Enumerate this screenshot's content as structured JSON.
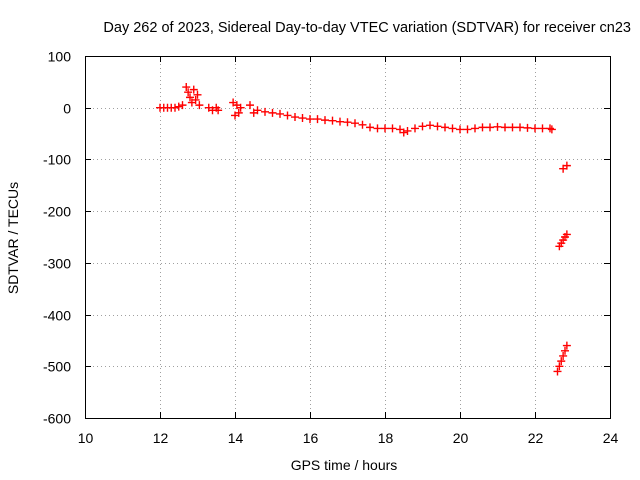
{
  "chart_data": {
    "type": "scatter",
    "title": "Day 262 of 2023, Sidereal Day-to-day VTEC variation (SDTVAR) for receiver cn23",
    "xlabel": "GPS time / hours",
    "ylabel": "SDTVAR / TECUs",
    "xlim": [
      10,
      24
    ],
    "ylim": [
      -600,
      100
    ],
    "xticks": [
      "10",
      "12",
      "14",
      "16",
      "18",
      "20",
      "22",
      "24"
    ],
    "yticks": [
      "100",
      "0",
      "-100",
      "-200",
      "-300",
      "-400",
      "-500",
      "-600"
    ],
    "grid": true,
    "marker": "plus",
    "color": "#ff0000",
    "series": [
      {
        "name": "SDTVAR",
        "points": [
          [
            12.0,
            0
          ],
          [
            12.1,
            0
          ],
          [
            12.2,
            0
          ],
          [
            12.3,
            0
          ],
          [
            12.4,
            0
          ],
          [
            12.5,
            2
          ],
          [
            12.6,
            5
          ],
          [
            12.7,
            40
          ],
          [
            12.75,
            30
          ],
          [
            12.8,
            20
          ],
          [
            12.85,
            10
          ],
          [
            12.9,
            35
          ],
          [
            12.95,
            15
          ],
          [
            13.0,
            25
          ],
          [
            13.05,
            5
          ],
          [
            13.3,
            0
          ],
          [
            13.4,
            -5
          ],
          [
            13.5,
            0
          ],
          [
            13.55,
            -5
          ],
          [
            13.95,
            10
          ],
          [
            14.0,
            -15
          ],
          [
            14.05,
            5
          ],
          [
            14.1,
            -10
          ],
          [
            14.15,
            0
          ],
          [
            14.4,
            5
          ],
          [
            14.5,
            -10
          ],
          [
            14.6,
            -5
          ],
          [
            14.8,
            -8
          ],
          [
            15.0,
            -10
          ],
          [
            15.2,
            -12
          ],
          [
            15.4,
            -15
          ],
          [
            15.6,
            -18
          ],
          [
            15.8,
            -20
          ],
          [
            16.0,
            -22
          ],
          [
            16.2,
            -22
          ],
          [
            16.4,
            -24
          ],
          [
            16.6,
            -25
          ],
          [
            16.8,
            -27
          ],
          [
            17.0,
            -28
          ],
          [
            17.2,
            -30
          ],
          [
            17.4,
            -33
          ],
          [
            17.6,
            -38
          ],
          [
            17.8,
            -40
          ],
          [
            18.0,
            -40
          ],
          [
            18.2,
            -40
          ],
          [
            18.4,
            -42
          ],
          [
            18.5,
            -48
          ],
          [
            18.6,
            -45
          ],
          [
            18.8,
            -40
          ],
          [
            19.0,
            -36
          ],
          [
            19.2,
            -34
          ],
          [
            19.4,
            -36
          ],
          [
            19.6,
            -38
          ],
          [
            19.8,
            -40
          ],
          [
            20.0,
            -42
          ],
          [
            20.2,
            -42
          ],
          [
            20.4,
            -40
          ],
          [
            20.6,
            -38
          ],
          [
            20.8,
            -38
          ],
          [
            21.0,
            -37
          ],
          [
            21.2,
            -38
          ],
          [
            21.4,
            -38
          ],
          [
            21.6,
            -38
          ],
          [
            21.8,
            -39
          ],
          [
            22.0,
            -40
          ],
          [
            22.2,
            -40
          ],
          [
            22.4,
            -40
          ],
          [
            22.45,
            -42
          ],
          [
            22.75,
            -118
          ],
          [
            22.85,
            -112
          ],
          [
            22.65,
            -268
          ],
          [
            22.7,
            -262
          ],
          [
            22.75,
            -256
          ],
          [
            22.8,
            -250
          ],
          [
            22.85,
            -245
          ],
          [
            22.6,
            -510
          ],
          [
            22.65,
            -500
          ],
          [
            22.7,
            -490
          ],
          [
            22.75,
            -480
          ],
          [
            22.8,
            -470
          ],
          [
            22.85,
            -460
          ]
        ]
      }
    ]
  }
}
